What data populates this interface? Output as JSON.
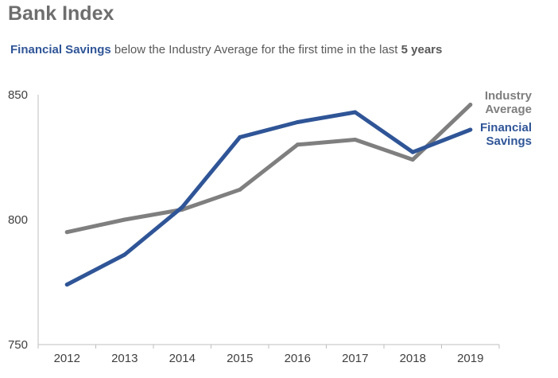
{
  "header": {
    "title": "Bank Index",
    "subtitle_highlight": "Financial Savings",
    "subtitle_middle": " below the Industry Average for the first time in the last ",
    "subtitle_bold": "5 years"
  },
  "colors": {
    "industry": "#7f7f7f",
    "financial": "#2f5597"
  },
  "chart_data": {
    "type": "line",
    "title": "Bank Index",
    "subtitle": "Financial Savings below the Industry Average for the first time in the last 5 years",
    "categories": [
      "2012",
      "2013",
      "2014",
      "2015",
      "2016",
      "2017",
      "2018",
      "2019"
    ],
    "series": [
      {
        "name": "Industry Average",
        "label_lines": [
          "Industry",
          "Average"
        ],
        "values": [
          795,
          800,
          804,
          812,
          830,
          832,
          824,
          846
        ]
      },
      {
        "name": "Financial Savings",
        "label_lines": [
          "Financial",
          "Savings"
        ],
        "values": [
          774,
          786,
          805,
          833,
          839,
          843,
          827,
          836
        ]
      }
    ],
    "ylim": [
      750,
      850
    ],
    "yticks": [
      "750",
      "800",
      "850"
    ],
    "xlabel": "",
    "ylabel": "",
    "grid": false,
    "legend": "direct labels at right end of lines"
  }
}
